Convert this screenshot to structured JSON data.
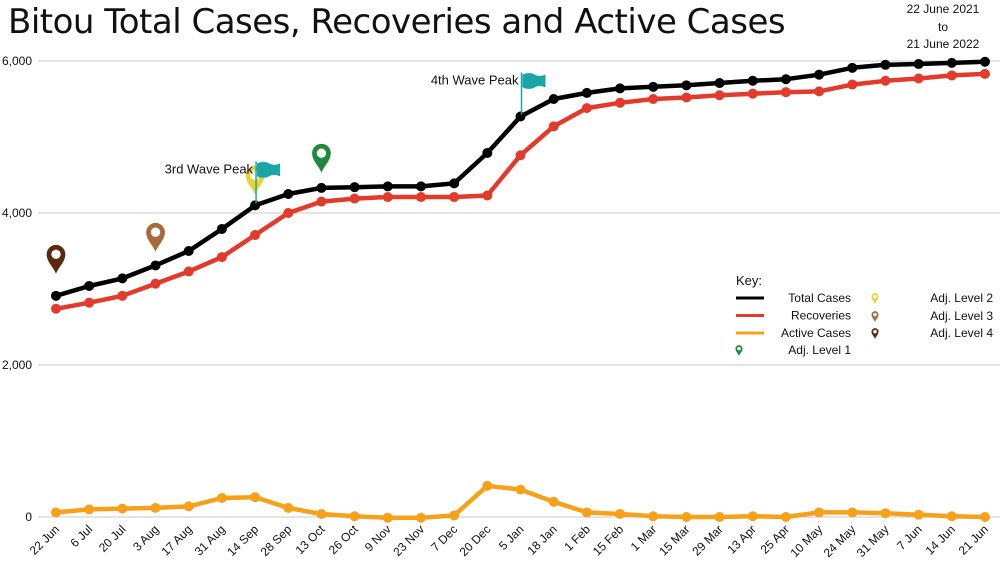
{
  "header": {
    "title": "Bitou Total Cases, Recoveries and Active Cases",
    "date_from": "22 June 2021",
    "date_to_word": "to",
    "date_to": "21 June 2022"
  },
  "chart_data": {
    "type": "line",
    "title": "Bitou Total Cases, Recoveries and Active Cases",
    "categories": [
      "22 Jun",
      "6 Jul",
      "20 Jul",
      "3 Aug",
      "17 Aug",
      "31 Aug",
      "14 Sep",
      "28 Sep",
      "13 Oct",
      "26 Oct",
      "9 Nov",
      "23 Nov",
      "7 Dec",
      "20 Dec",
      "5 Jan",
      "18 Jan",
      "1 Feb",
      "15 Feb",
      "1 Mar",
      "15 Mar",
      "29 Mar",
      "13 Apr",
      "25 Apr",
      "10 May",
      "24 May",
      "31 May",
      "7 Jun",
      "14 Jun",
      "21 Jun"
    ],
    "y_ticks": [
      "0",
      "2,000",
      "4,000",
      "6,000"
    ],
    "y_tick_values": [
      0,
      2000,
      4000,
      6000
    ],
    "ylim": [
      0,
      6000
    ],
    "grid": "horizontal",
    "series": [
      {
        "name": "Total Cases",
        "color": "#000000",
        "values": [
          2910,
          3040,
          3140,
          3310,
          3500,
          3790,
          4100,
          4250,
          4330,
          4340,
          4350,
          4350,
          4390,
          4790,
          5270,
          5500,
          5580,
          5640,
          5660,
          5680,
          5710,
          5740,
          5760,
          5820,
          5910,
          5950,
          5960,
          5975,
          5990
        ]
      },
      {
        "name": "Recoveries",
        "color": "#e23b2b",
        "values": [
          2740,
          2820,
          2910,
          3070,
          3230,
          3420,
          3710,
          4000,
          4150,
          4190,
          4210,
          4210,
          4210,
          4230,
          4760,
          5140,
          5380,
          5450,
          5500,
          5520,
          5550,
          5570,
          5590,
          5600,
          5690,
          5740,
          5770,
          5810,
          5830
        ]
      },
      {
        "name": "Active Cases",
        "color": "#f7a11a",
        "values": [
          60,
          100,
          110,
          120,
          140,
          250,
          260,
          120,
          40,
          10,
          -10,
          -10,
          20,
          410,
          360,
          200,
          60,
          40,
          10,
          0,
          0,
          10,
          0,
          60,
          60,
          50,
          30,
          10,
          0
        ]
      }
    ],
    "annotations": [
      {
        "text": "3rd Wave Peak",
        "category": "14 Sep",
        "marker": "flag"
      },
      {
        "text": "4th Wave Peak",
        "category": "5 Jan",
        "marker": "flag"
      }
    ],
    "level_pins": [
      {
        "level": "Adj. Level 4",
        "category": "22 Jun",
        "value": 3200
      },
      {
        "level": "Adj. Level 3",
        "category": "3 Aug",
        "value": 3490
      },
      {
        "level": "Adj. Level 2",
        "category": "14 Sep",
        "value": 4240
      },
      {
        "level": "Adj. Level 1",
        "category": "13 Oct",
        "value": 4530
      }
    ],
    "legend": {
      "title": "Key:",
      "placement": "right-middle",
      "items": [
        {
          "label": "Total Cases",
          "kind": "line",
          "color": "#000000"
        },
        {
          "label": "Recoveries",
          "kind": "line",
          "color": "#e23b2b"
        },
        {
          "label": "Active Cases",
          "kind": "line",
          "color": "#f7a11a"
        },
        {
          "label": "Adj. Level 1",
          "kind": "pin",
          "color": "#1e8a3c"
        },
        {
          "label": "Adj. Level 2",
          "kind": "pin",
          "color": "#e8d33a"
        },
        {
          "label": "Adj. Level 3",
          "kind": "pin",
          "color": "#a86a3a"
        },
        {
          "label": "Adj. Level 4",
          "kind": "pin",
          "color": "#5a2a10"
        }
      ]
    },
    "flag_color": "#1aa6a6"
  }
}
